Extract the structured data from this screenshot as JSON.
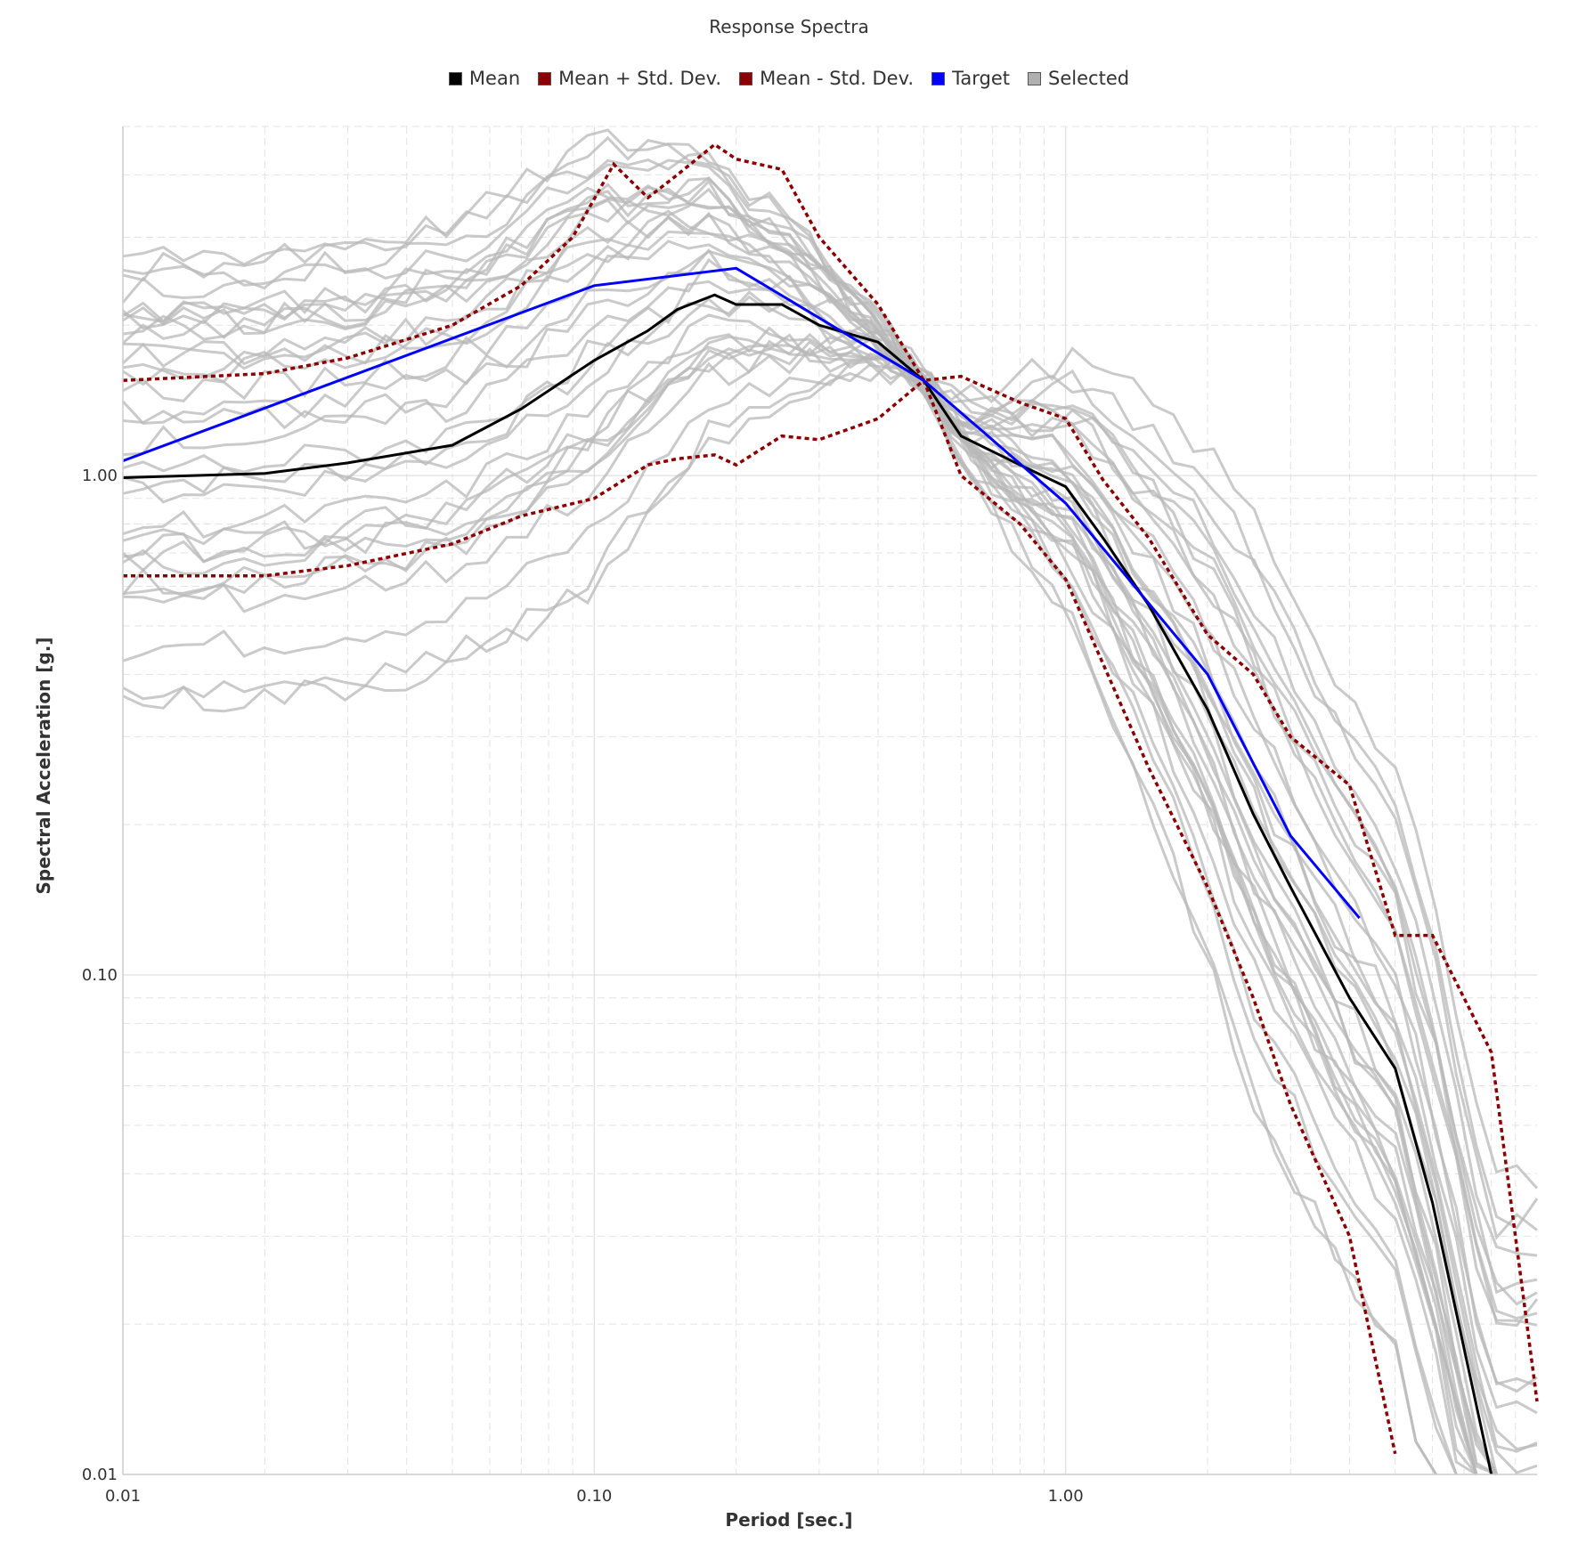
{
  "chart_data": {
    "type": "line",
    "title": "Response Spectra",
    "xlabel": "Period [sec.]",
    "ylabel": "Spectral Acceleration [g.]",
    "xscale": "log",
    "yscale": "log",
    "xlim": [
      0.01,
      10
    ],
    "ylim": [
      0.01,
      5
    ],
    "x_ticks": [
      {
        "value": 0.01,
        "label": "0.01"
      },
      {
        "value": 0.1,
        "label": "0.10"
      },
      {
        "value": 1,
        "label": "1.00"
      }
    ],
    "y_ticks": [
      {
        "value": 0.01,
        "label": "0.01"
      },
      {
        "value": 0.1,
        "label": "0.10"
      },
      {
        "value": 1,
        "label": "1.00"
      }
    ],
    "grid": true,
    "legend_position": "top-center",
    "legend": [
      {
        "label": "Mean",
        "color": "#000000"
      },
      {
        "label": "Mean + Std. Dev.",
        "color": "#8b0000"
      },
      {
        "label": "Mean - Std. Dev.",
        "color": "#8b0000"
      },
      {
        "label": "Target",
        "color": "#0000ff"
      },
      {
        "label": "Selected",
        "color": "#b0b0b0"
      }
    ],
    "series": [
      {
        "name": "Mean",
        "color": "#000000",
        "dash": false,
        "x": [
          0.01,
          0.02,
          0.03,
          0.05,
          0.07,
          0.1,
          0.13,
          0.15,
          0.18,
          0.2,
          0.25,
          0.3,
          0.4,
          0.5,
          0.6,
          0.8,
          1.0,
          1.2,
          1.5,
          2.0,
          2.5,
          3.0,
          4.0,
          5.0,
          6.0,
          8.0
        ],
        "y": [
          0.99,
          1.01,
          1.06,
          1.15,
          1.36,
          1.7,
          1.95,
          2.15,
          2.3,
          2.2,
          2.2,
          2.0,
          1.85,
          1.55,
          1.2,
          1.05,
          0.95,
          0.75,
          0.55,
          0.34,
          0.21,
          0.15,
          0.09,
          0.065,
          0.035,
          0.01
        ]
      },
      {
        "name": "Mean + Std. Dev.",
        "color": "#8b0000",
        "dash": true,
        "x": [
          0.01,
          0.02,
          0.03,
          0.05,
          0.07,
          0.09,
          0.11,
          0.13,
          0.15,
          0.18,
          0.2,
          0.25,
          0.3,
          0.4,
          0.5,
          0.6,
          0.8,
          1.0,
          1.2,
          1.5,
          2.0,
          2.5,
          3.0,
          4.0,
          5.0,
          6.0,
          8.0,
          10.0
        ],
        "y": [
          1.55,
          1.6,
          1.72,
          2.0,
          2.4,
          3.0,
          4.2,
          3.6,
          4.0,
          4.6,
          4.3,
          4.1,
          3.0,
          2.2,
          1.55,
          1.58,
          1.4,
          1.3,
          0.98,
          0.75,
          0.48,
          0.4,
          0.3,
          0.24,
          0.12,
          0.12,
          0.07,
          0.014
        ]
      },
      {
        "name": "Mean - Std. Dev.",
        "color": "#8b0000",
        "dash": true,
        "x": [
          0.01,
          0.02,
          0.03,
          0.05,
          0.07,
          0.1,
          0.13,
          0.15,
          0.18,
          0.2,
          0.25,
          0.3,
          0.4,
          0.5,
          0.6,
          0.8,
          1.0,
          1.2,
          1.5,
          2.0,
          2.5,
          3.0,
          4.0,
          5.0
        ],
        "y": [
          0.63,
          0.63,
          0.66,
          0.73,
          0.83,
          0.9,
          1.05,
          1.08,
          1.1,
          1.05,
          1.2,
          1.18,
          1.3,
          1.55,
          1.0,
          0.8,
          0.62,
          0.42,
          0.26,
          0.15,
          0.09,
          0.055,
          0.03,
          0.011
        ]
      },
      {
        "name": "Target",
        "color": "#0000ff",
        "dash": false,
        "x": [
          0.01,
          0.1,
          0.2,
          0.5,
          1.0,
          2.0,
          3.0,
          4.2
        ],
        "y": [
          1.07,
          2.4,
          2.6,
          1.55,
          0.88,
          0.4,
          0.19,
          0.13
        ]
      }
    ]
  }
}
